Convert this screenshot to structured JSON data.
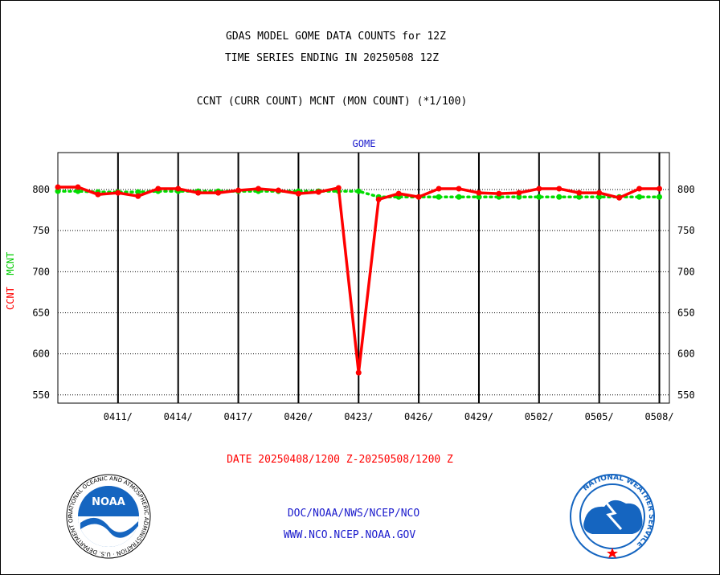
{
  "title_line1": "GDAS MODEL GOME DATA COUNTS for 12Z",
  "title_line2": "TIME SERIES ENDING IN 20250508 12Z",
  "subtitle": "CCNT (CURR COUNT) MCNT (MON COUNT) (*1/100)",
  "panel_label": "GOME",
  "y_label_ccnt": "CCNT",
  "y_label_mcnt": "MCNT",
  "date_range": "DATE 20250408/1200 Z-20250508/1200 Z",
  "credit_line1": "DOC/NOAA/NWS/NCEP/NCO",
  "credit_line2": "WWW.NCO.NCEP.NOAA.GOV",
  "logos": {
    "noaa": {
      "name": "noaa-logo",
      "text": "NOAA",
      "ring_text": "NATIONAL OCEANIC AND ATMOSPHERIC ADMINISTRATION · U.S. DEPARTMENT OF COMMERCE",
      "color": "#1565c0"
    },
    "nws": {
      "name": "nws-logo",
      "ring_text": "NATIONAL WEATHER SERVICE",
      "color": "#1565c0"
    }
  },
  "colors": {
    "ccnt": "#ff0000",
    "mcnt": "#00dd00",
    "text_blue": "#1a1acc",
    "date_red": "#ff0000"
  },
  "chart_data": {
    "type": "line",
    "title": "GDAS MODEL GOME DATA COUNTS for 12Z",
    "ylim": [
      540,
      845
    ],
    "y_ticks": [
      550,
      600,
      650,
      700,
      750,
      800
    ],
    "x_ticks": [
      {
        "day": 3,
        "label": "0411/"
      },
      {
        "day": 6,
        "label": "0414/"
      },
      {
        "day": 9,
        "label": "0417/"
      },
      {
        "day": 12,
        "label": "0420/"
      },
      {
        "day": 15,
        "label": "0423/"
      },
      {
        "day": 18,
        "label": "0426/"
      },
      {
        "day": 21,
        "label": "0429/"
      },
      {
        "day": 24,
        "label": "0502/"
      },
      {
        "day": 27,
        "label": "0505/"
      },
      {
        "day": 30,
        "label": "0508/"
      }
    ],
    "x_range_days": [
      0,
      30.5
    ],
    "series": [
      {
        "name": "CCNT",
        "color": "#ff0000",
        "values": [
          803,
          803,
          794,
          796,
          792,
          801,
          801,
          796,
          796,
          799,
          801,
          799,
          795,
          797,
          802,
          577,
          788,
          795,
          791,
          801,
          801,
          796,
          795,
          796,
          801,
          801,
          796,
          796,
          790,
          801,
          801
        ]
      },
      {
        "name": "MCNT",
        "color": "#00dd00",
        "values": [
          798,
          798,
          797,
          797,
          797,
          798,
          798,
          798,
          798,
          798,
          798,
          798,
          798,
          798,
          798,
          798,
          791,
          791,
          791,
          791,
          791,
          791,
          791,
          791,
          791,
          791,
          791,
          791,
          791,
          791,
          791
        ]
      }
    ]
  }
}
